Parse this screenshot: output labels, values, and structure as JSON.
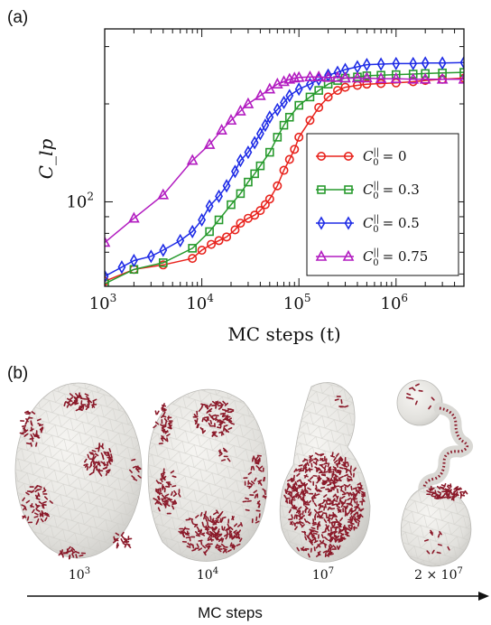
{
  "panel_a": {
    "letter": "(a)"
  },
  "panel_b": {
    "letter": "(b)"
  },
  "chart_data": {
    "type": "line",
    "title": "",
    "xlabel": "MC steps (t)",
    "ylabel": "C_lp",
    "xscale": "log",
    "yscale": "log",
    "xlim": [
      1000,
      5000000
    ],
    "ylim": [
      55,
      340
    ],
    "xticks": [
      {
        "base": "10",
        "exp": "3"
      },
      {
        "base": "10",
        "exp": "4"
      },
      {
        "base": "10",
        "exp": "5"
      },
      {
        "base": "10",
        "exp": "6"
      }
    ],
    "yticks": [
      {
        "value": 100,
        "label": "10",
        "exp": "2"
      }
    ],
    "legend_position": "lower-right",
    "series": [
      {
        "label_sup": "||",
        "label_sub": "0",
        "label_value": "= 0",
        "color": "#e8231d",
        "marker": "circle",
        "x": [
          1000,
          2000,
          4000,
          8000,
          10000,
          12500,
          15000,
          18000,
          22000,
          25000,
          30000,
          35000,
          40000,
          45000,
          50000,
          60000,
          70000,
          80000,
          90000,
          100000,
          130000,
          160000,
          200000,
          250000,
          300000,
          400000,
          500000,
          700000,
          1000000,
          1500000,
          2000000,
          3000000,
          5000000
        ],
        "y": [
          57,
          62,
          64,
          67,
          71,
          74,
          76,
          78,
          82,
          86,
          89,
          91,
          94,
          98,
          102,
          112,
          125,
          135,
          145,
          158,
          178,
          195,
          210,
          220,
          225,
          228,
          230,
          231,
          232,
          234,
          236,
          238,
          240
        ]
      },
      {
        "label_sup": "||",
        "label_sub": "0",
        "label_value": "= 0.3",
        "color": "#279a2d",
        "marker": "square",
        "x": [
          1000,
          2000,
          4000,
          8000,
          12000,
          15000,
          20000,
          25000,
          30000,
          35000,
          40000,
          50000,
          60000,
          70000,
          80000,
          100000,
          130000,
          160000,
          200000,
          250000,
          300000,
          400000,
          500000,
          700000,
          1000000,
          1500000,
          2000000,
          3000000,
          5000000
        ],
        "y": [
          56,
          62,
          65,
          72,
          81,
          88,
          98,
          106,
          115,
          122,
          129,
          142,
          158,
          172,
          182,
          198,
          210,
          220,
          230,
          236,
          240,
          242,
          244,
          245,
          246,
          247,
          248,
          249,
          250
        ]
      },
      {
        "label_sup": "||",
        "label_sub": "0",
        "label_value": "= 0.5",
        "color": "#1f2ce6",
        "marker": "diamond",
        "x": [
          1000,
          1500,
          2000,
          3000,
          4000,
          6000,
          8000,
          10000,
          12000,
          15000,
          18000,
          22000,
          25000,
          30000,
          35000,
          40000,
          45000,
          50000,
          60000,
          70000,
          80000,
          100000,
          130000,
          160000,
          200000,
          250000,
          300000,
          400000,
          500000,
          700000,
          1000000,
          1500000,
          2000000,
          3000000,
          5000000
        ],
        "y": [
          59,
          63,
          66,
          68,
          71,
          76,
          81,
          88,
          97,
          104,
          112,
          124,
          134,
          142,
          152,
          162,
          172,
          182,
          192,
          202,
          212,
          222,
          230,
          238,
          245,
          250,
          255,
          260,
          264,
          265,
          266,
          266,
          267,
          267,
          268
        ]
      },
      {
        "label_sup": "||",
        "label_sub": "0",
        "label_value": "= 0.75",
        "color": "#b21cc0",
        "marker": "triangle",
        "x": [
          1000,
          2000,
          4000,
          8000,
          12000,
          16000,
          20000,
          25000,
          30000,
          40000,
          50000,
          60000,
          70000,
          80000,
          90000,
          100000,
          130000,
          160000,
          200000,
          250000,
          300000,
          400000,
          500000,
          700000,
          1000000,
          1500000,
          2000000,
          3000000,
          5000000
        ],
        "y": [
          75,
          89,
          105,
          134,
          150,
          166,
          178,
          190,
          200,
          212,
          222,
          230,
          234,
          238,
          240,
          241,
          242,
          242,
          241,
          241,
          240,
          240,
          240,
          239,
          239,
          238,
          238,
          238,
          238
        ]
      }
    ]
  },
  "snapshots": {
    "labels": [
      {
        "base": "10",
        "exp": "3",
        "prefix": ""
      },
      {
        "base": "10",
        "exp": "4",
        "prefix": ""
      },
      {
        "base": "10",
        "exp": "7",
        "prefix": ""
      },
      {
        "base": "10",
        "exp": "7",
        "prefix": "2 × "
      }
    ],
    "arrow_label": "MC steps",
    "membrane_color": "#e4e3e0",
    "protein_color": "#8b1a2a"
  }
}
